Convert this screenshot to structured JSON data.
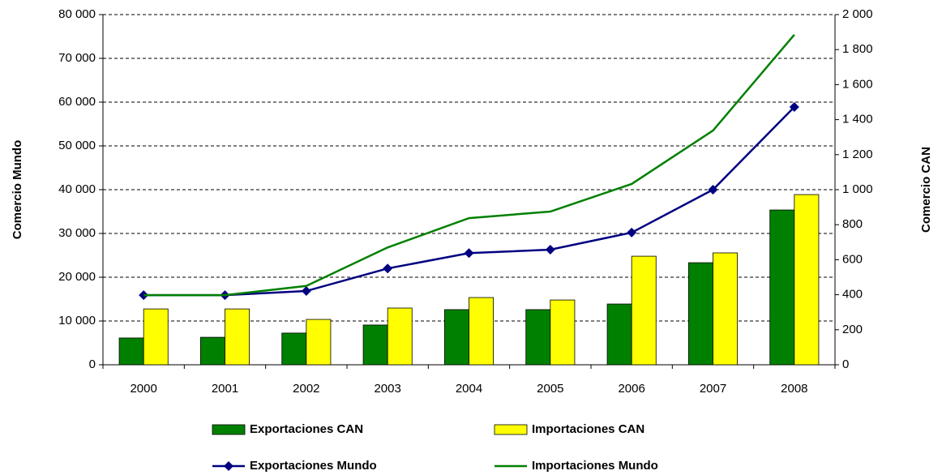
{
  "chart_data": {
    "type": "bar-line",
    "categories": [
      "2000",
      "2001",
      "2002",
      "2003",
      "2004",
      "2005",
      "2006",
      "2007",
      "2008"
    ],
    "y_label": "Comercio Mundo",
    "y2_label": "Comercio CAN",
    "ylim": [
      0,
      80000
    ],
    "yticks": [
      0,
      {
        "value": 10000,
        "label": "10 000"
      },
      {
        "value": 20000,
        "label": "20 000"
      },
      {
        "value": 30000,
        "label": "30 000"
      },
      {
        "value": 40000,
        "label": "40 000"
      },
      {
        "value": 50000,
        "label": "50 000"
      },
      {
        "value": 60000,
        "label": "60 000"
      },
      {
        "value": 70000,
        "label": "70 000"
      },
      {
        "value": 80000,
        "label": "80 000"
      }
    ],
    "y2lim": [
      0,
      2000
    ],
    "y2ticks": [
      0,
      200,
      400,
      600,
      800,
      {
        "value": 1000,
        "label": "1 000"
      },
      {
        "value": 1200,
        "label": "1 200"
      },
      {
        "value": 1400,
        "label": "1 400"
      },
      {
        "value": 1600,
        "label": "1 600"
      },
      {
        "value": 1800,
        "label": "1 800"
      },
      {
        "value": 2000,
        "label": "2 000"
      }
    ],
    "grid": true,
    "series": [
      {
        "name": "Exportaciones CAN",
        "kind": "bar",
        "axis": "y2",
        "color": "#008000",
        "values": [
          153,
          157,
          181,
          227,
          315,
          315,
          347,
          583,
          884
        ]
      },
      {
        "name": "Importaciones CAN",
        "kind": "bar",
        "axis": "y2",
        "color": "#ffff00",
        "values": [
          319,
          319,
          259,
          324,
          384,
          370,
          620,
          639,
          972
        ]
      },
      {
        "name": "Exportaciones Mundo",
        "kind": "line",
        "marker": "diamond",
        "color": "#000080",
        "values": [
          15900,
          15900,
          16850,
          22000,
          25500,
          26300,
          30200,
          40000,
          58900
        ]
      },
      {
        "name": "Importaciones Mundo",
        "kind": "line",
        "color": "#008000",
        "values": [
          15900,
          15900,
          18000,
          26800,
          33500,
          35000,
          41300,
          53500,
          75400
        ]
      }
    ]
  }
}
